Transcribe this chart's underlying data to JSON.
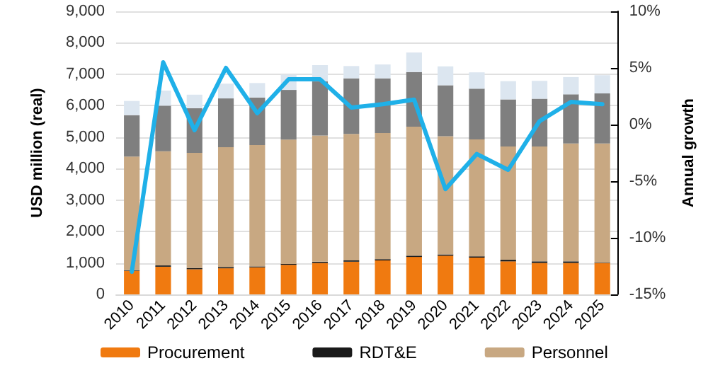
{
  "chart_data": {
    "type": "bar",
    "stacked": true,
    "ylabel": "USD million (real)",
    "y2label": "Annual growth",
    "categories": [
      "2010",
      "2011",
      "2012",
      "2013",
      "2014",
      "2015",
      "2016",
      "2017",
      "2018",
      "2019",
      "2020",
      "2021",
      "2022",
      "2023",
      "2024",
      "2025"
    ],
    "series": [
      {
        "name": "Procurement",
        "color": "#f07a10",
        "values": [
          750,
          880,
          800,
          830,
          860,
          940,
          1000,
          1040,
          1080,
          1190,
          1230,
          1170,
          1050,
          1000,
          1000,
          1000
        ]
      },
      {
        "name": "RDT&E",
        "color": "#1a1a1a",
        "values": [
          20,
          40,
          40,
          40,
          30,
          30,
          40,
          40,
          40,
          40,
          40,
          40,
          50,
          50,
          50,
          20
        ]
      },
      {
        "name": "Personnel",
        "color": "#c8a882",
        "values": [
          3610,
          3630,
          3660,
          3810,
          3860,
          3950,
          4010,
          4020,
          4010,
          4100,
          3760,
          3720,
          3600,
          3650,
          3750,
          3780
        ]
      },
      {
        "color": "#7f7f7f",
        "values": [
          1320,
          1450,
          1420,
          1550,
          1510,
          1580,
          1720,
          1770,
          1740,
          1740,
          1620,
          1610,
          1500,
          1520,
          1560,
          1590
        ]
      },
      {
        "color": "#dce6f0",
        "values": [
          450,
          480,
          430,
          470,
          460,
          490,
          520,
          390,
          440,
          620,
          600,
          520,
          580,
          570,
          550,
          580
        ]
      },
      {
        "type": "line",
        "axis": "y2",
        "color": "#1fb0e8",
        "values": [
          -13,
          5.5,
          -0.5,
          5,
          1,
          4,
          4,
          1.5,
          1.8,
          2.2,
          -5.7,
          -2.6,
          -4,
          0.3,
          2,
          1.8
        ]
      }
    ],
    "ylim": [
      0,
      9000
    ],
    "yticks": [
      0,
      {
        "value": 1000,
        "label": "1,000"
      },
      {
        "value": 2000,
        "label": "2,000"
      },
      {
        "value": 3000,
        "label": "3,000"
      },
      {
        "value": 4000,
        "label": "4,000"
      },
      {
        "value": 5000,
        "label": "5,000"
      },
      {
        "value": 6000,
        "label": "6,000"
      },
      {
        "value": 7000,
        "label": "7,000"
      },
      {
        "value": 8000,
        "label": "8,000"
      },
      {
        "value": 9000,
        "label": "9,000"
      }
    ],
    "y2lim": [
      -15,
      10
    ],
    "y2ticks": [
      {
        "value": -15,
        "label": "-15%"
      },
      {
        "value": -10,
        "label": "-10%"
      },
      {
        "value": -5,
        "label": "-5%"
      },
      {
        "value": 0,
        "label": "0%"
      },
      {
        "value": 5,
        "label": "5%"
      },
      {
        "value": 10,
        "label": "10%"
      }
    ],
    "grid": "y",
    "legend": "bottom",
    "marker": "none",
    "line_style": "solid"
  }
}
